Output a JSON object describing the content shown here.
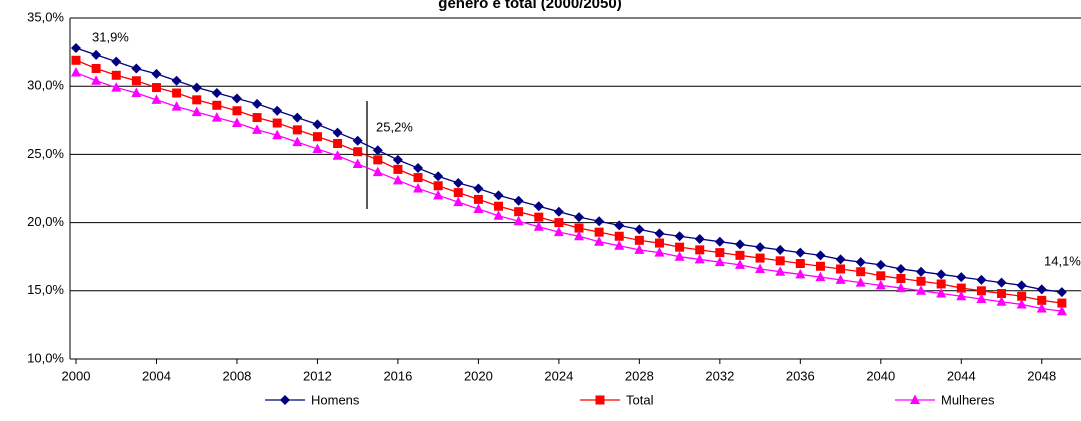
{
  "chart_data": {
    "type": "line",
    "title": "gênero e total (2000/2050)",
    "x": [
      2000,
      2001,
      2002,
      2003,
      2004,
      2005,
      2006,
      2007,
      2008,
      2009,
      2010,
      2011,
      2012,
      2013,
      2014,
      2015,
      2016,
      2017,
      2018,
      2019,
      2020,
      2021,
      2022,
      2023,
      2024,
      2025,
      2026,
      2027,
      2028,
      2029,
      2030,
      2031,
      2032,
      2033,
      2034,
      2035,
      2036,
      2037,
      2038,
      2039,
      2040,
      2041,
      2042,
      2043,
      2044,
      2045,
      2046,
      2047,
      2048,
      2049
    ],
    "series": [
      {
        "name": "Homens",
        "color": "#000080",
        "marker": "diamond",
        "values": [
          32.8,
          32.3,
          31.8,
          31.3,
          30.9,
          30.4,
          29.9,
          29.5,
          29.1,
          28.7,
          28.2,
          27.7,
          27.2,
          26.6,
          26.0,
          25.3,
          24.6,
          24.0,
          23.4,
          22.9,
          22.5,
          22.0,
          21.6,
          21.2,
          20.8,
          20.4,
          20.1,
          19.8,
          19.5,
          19.2,
          19.0,
          18.8,
          18.6,
          18.4,
          18.2,
          18.0,
          17.8,
          17.6,
          17.3,
          17.1,
          16.9,
          16.6,
          16.4,
          16.2,
          16.0,
          15.8,
          15.6,
          15.4,
          15.1,
          14.9
        ]
      },
      {
        "name": "Total",
        "color": "#ff0000",
        "marker": "square",
        "values": [
          31.9,
          31.3,
          30.8,
          30.4,
          29.9,
          29.5,
          29.0,
          28.6,
          28.2,
          27.7,
          27.3,
          26.8,
          26.3,
          25.8,
          25.2,
          24.6,
          23.9,
          23.3,
          22.7,
          22.2,
          21.7,
          21.2,
          20.8,
          20.4,
          20.0,
          19.6,
          19.3,
          19.0,
          18.7,
          18.5,
          18.2,
          18.0,
          17.8,
          17.6,
          17.4,
          17.2,
          17.0,
          16.8,
          16.6,
          16.4,
          16.1,
          15.9,
          15.7,
          15.5,
          15.2,
          15.0,
          14.8,
          14.6,
          14.3,
          14.1
        ]
      },
      {
        "name": "Mulheres",
        "color": "#ff00ff",
        "marker": "triangle",
        "values": [
          31.0,
          30.4,
          29.9,
          29.5,
          29.0,
          28.5,
          28.1,
          27.7,
          27.3,
          26.8,
          26.4,
          25.9,
          25.4,
          24.9,
          24.3,
          23.7,
          23.1,
          22.5,
          22.0,
          21.5,
          21.0,
          20.5,
          20.1,
          19.7,
          19.3,
          19.0,
          18.6,
          18.3,
          18.0,
          17.8,
          17.5,
          17.3,
          17.1,
          16.9,
          16.6,
          16.4,
          16.2,
          16.0,
          15.8,
          15.6,
          15.4,
          15.2,
          15.0,
          14.8,
          14.6,
          14.4,
          14.2,
          14.0,
          13.7,
          13.5
        ]
      }
    ],
    "annotations": [
      "31,9%",
      "25,2%",
      "14,1%"
    ],
    "xlim": [
      2000,
      2050
    ],
    "xticks": [
      2000,
      2004,
      2008,
      2012,
      2016,
      2020,
      2024,
      2028,
      2032,
      2036,
      2040,
      2044,
      2048
    ],
    "ylim": [
      10,
      35
    ],
    "yticks": [
      {
        "value": 10,
        "label": "10,0%"
      },
      {
        "value": 15,
        "label": "15,0%"
      },
      {
        "value": 20,
        "label": "20,0%"
      },
      {
        "value": 25,
        "label": "25,0%"
      },
      {
        "value": 30,
        "label": "30,0%"
      },
      {
        "value": 35,
        "label": "35,0%"
      }
    ],
    "grid": true,
    "legend": "bottom"
  }
}
